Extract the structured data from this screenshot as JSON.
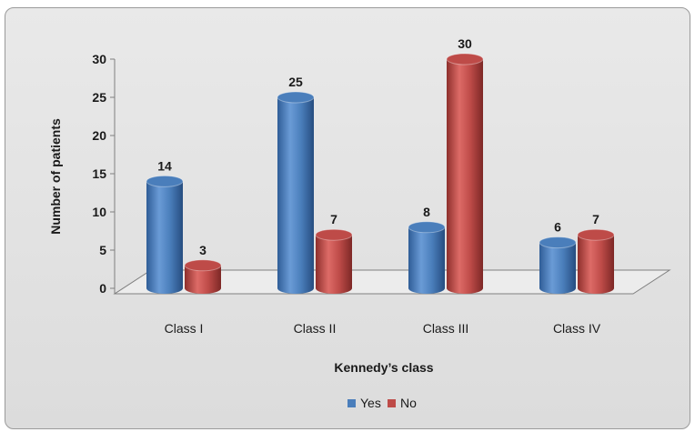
{
  "chart_data": {
    "type": "bar",
    "title": "",
    "xlabel": "Kennedy’s class",
    "ylabel": "Number of patients",
    "categories": [
      "Class I",
      "Class II",
      "Class III",
      "Class IV"
    ],
    "series": [
      {
        "name": "Yes",
        "values": [
          14,
          25,
          8,
          6
        ],
        "color": "#4a7ebb"
      },
      {
        "name": "No",
        "values": [
          3,
          7,
          30,
          7
        ],
        "color": "#be4b48"
      }
    ],
    "ylim": [
      0,
      30
    ],
    "yticks": [
      "0",
      "5",
      "10",
      "15",
      "20",
      "25",
      "30"
    ],
    "legend_position": "bottom",
    "grid": false,
    "style": "3d-cylinder"
  }
}
